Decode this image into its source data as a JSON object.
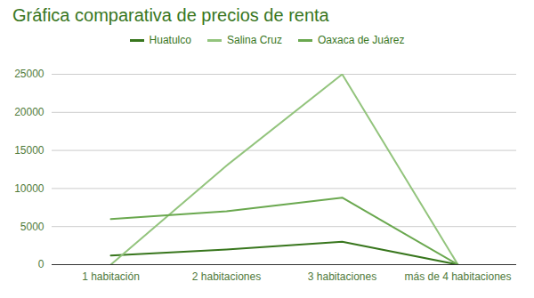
{
  "chart_data": {
    "type": "line",
    "title": "Gráfica comparativa de precios de renta",
    "categories": [
      "1 habitación",
      "2 habitaciones",
      "3 habitaciones",
      "más de 4 habitaciones"
    ],
    "series": [
      {
        "name": "Huatulco",
        "color": "#38761d",
        "values": [
          1200,
          2000,
          3000,
          0
        ]
      },
      {
        "name": "Salina Cruz",
        "color": "#93c47d",
        "values": [
          0,
          13000,
          25000,
          0
        ]
      },
      {
        "name": "Oaxaca de Juárez",
        "color": "#6aa84f",
        "values": [
          6000,
          7000,
          8800,
          0
        ]
      }
    ],
    "ylim": [
      0,
      25000
    ],
    "yticks": [
      0,
      5000,
      10000,
      15000,
      20000,
      25000
    ],
    "grid": true,
    "legend": "top"
  }
}
